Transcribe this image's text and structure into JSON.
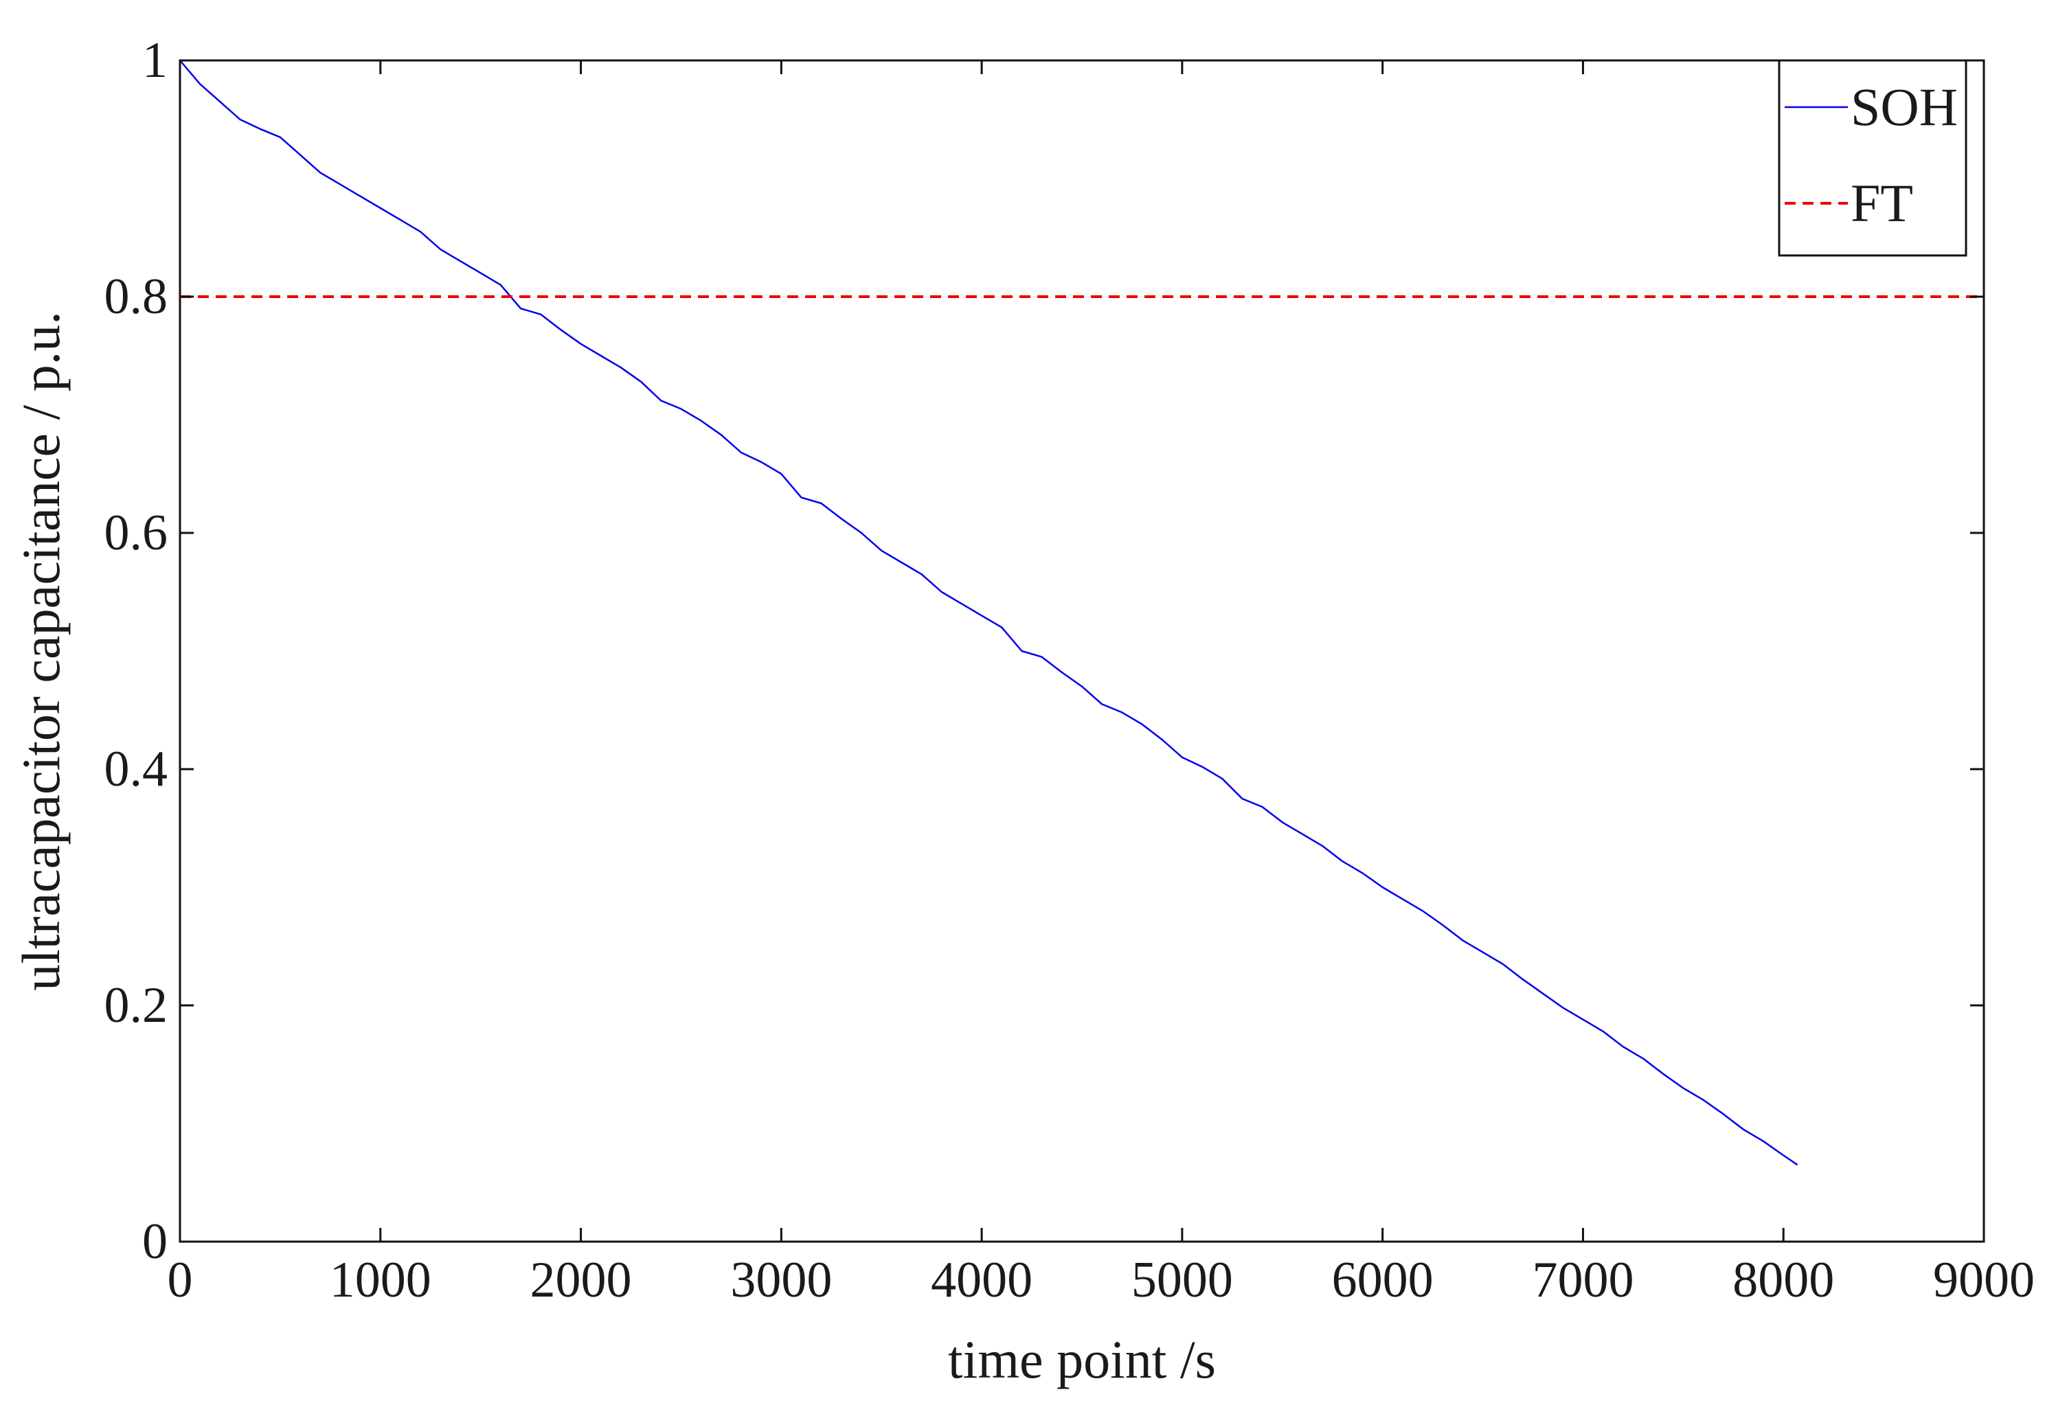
{
  "chart_data": {
    "type": "line",
    "xlabel": "time point /s",
    "ylabel": "ultracapacitor capacitance / p.u.",
    "xlim": [
      0,
      9000
    ],
    "ylim": [
      0,
      1
    ],
    "xticks": [
      0,
      1000,
      2000,
      3000,
      4000,
      5000,
      6000,
      7000,
      8000,
      9000
    ],
    "yticks": [
      0,
      0.2,
      0.4,
      0.6,
      0.8,
      1
    ],
    "xtick_labels": [
      "0",
      "1000",
      "2000",
      "3000",
      "4000",
      "5000",
      "6000",
      "7000",
      "8000",
      "9000"
    ],
    "ytick_labels": [
      "0",
      "0.2",
      "0.4",
      "0.6",
      "0.8",
      "1"
    ],
    "grid": false,
    "legend": {
      "position": "top-right",
      "entries": [
        "SOH",
        "FT"
      ]
    },
    "series": [
      {
        "name": "SOH",
        "color": "#0000ee",
        "style": "solid",
        "x": [
          0,
          100,
          200,
          300,
          400,
          500,
          600,
          700,
          800,
          900,
          1000,
          1100,
          1200,
          1300,
          1400,
          1500,
          1600,
          1700,
          1800,
          1900,
          2000,
          2100,
          2200,
          2300,
          2400,
          2500,
          2600,
          2700,
          2800,
          2900,
          3000,
          3100,
          3200,
          3300,
          3400,
          3500,
          3600,
          3700,
          3800,
          3900,
          4000,
          4100,
          4200,
          4300,
          4400,
          4500,
          4600,
          4700,
          4800,
          4900,
          5000,
          5100,
          5200,
          5300,
          5400,
          5500,
          5600,
          5700,
          5800,
          5900,
          6000,
          6100,
          6200,
          6300,
          6400,
          6500,
          6600,
          6700,
          6800,
          6900,
          7000,
          7100,
          7200,
          7300,
          7400,
          7500,
          7600,
          7700,
          7800,
          7900,
          8000,
          8070
        ],
        "y": [
          1.0,
          0.98,
          0.965,
          0.95,
          0.942,
          0.935,
          0.92,
          0.905,
          0.895,
          0.885,
          0.875,
          0.865,
          0.855,
          0.84,
          0.83,
          0.82,
          0.81,
          0.79,
          0.785,
          0.772,
          0.76,
          0.75,
          0.74,
          0.728,
          0.712,
          0.705,
          0.695,
          0.683,
          0.668,
          0.66,
          0.65,
          0.63,
          0.625,
          0.612,
          0.6,
          0.585,
          0.575,
          0.565,
          0.55,
          0.54,
          0.53,
          0.52,
          0.5,
          0.495,
          0.482,
          0.47,
          0.455,
          0.448,
          0.438,
          0.425,
          0.41,
          0.402,
          0.392,
          0.375,
          0.368,
          0.355,
          0.345,
          0.335,
          0.322,
          0.312,
          0.3,
          0.29,
          0.28,
          0.268,
          0.255,
          0.245,
          0.235,
          0.222,
          0.21,
          0.198,
          0.188,
          0.178,
          0.165,
          0.155,
          0.142,
          0.13,
          0.12,
          0.108,
          0.095,
          0.085,
          0.073,
          0.065
        ]
      },
      {
        "name": "FT",
        "color": "#ee0000",
        "style": "dashed",
        "x": [
          0,
          9000
        ],
        "y": [
          0.8,
          0.8
        ]
      }
    ]
  }
}
